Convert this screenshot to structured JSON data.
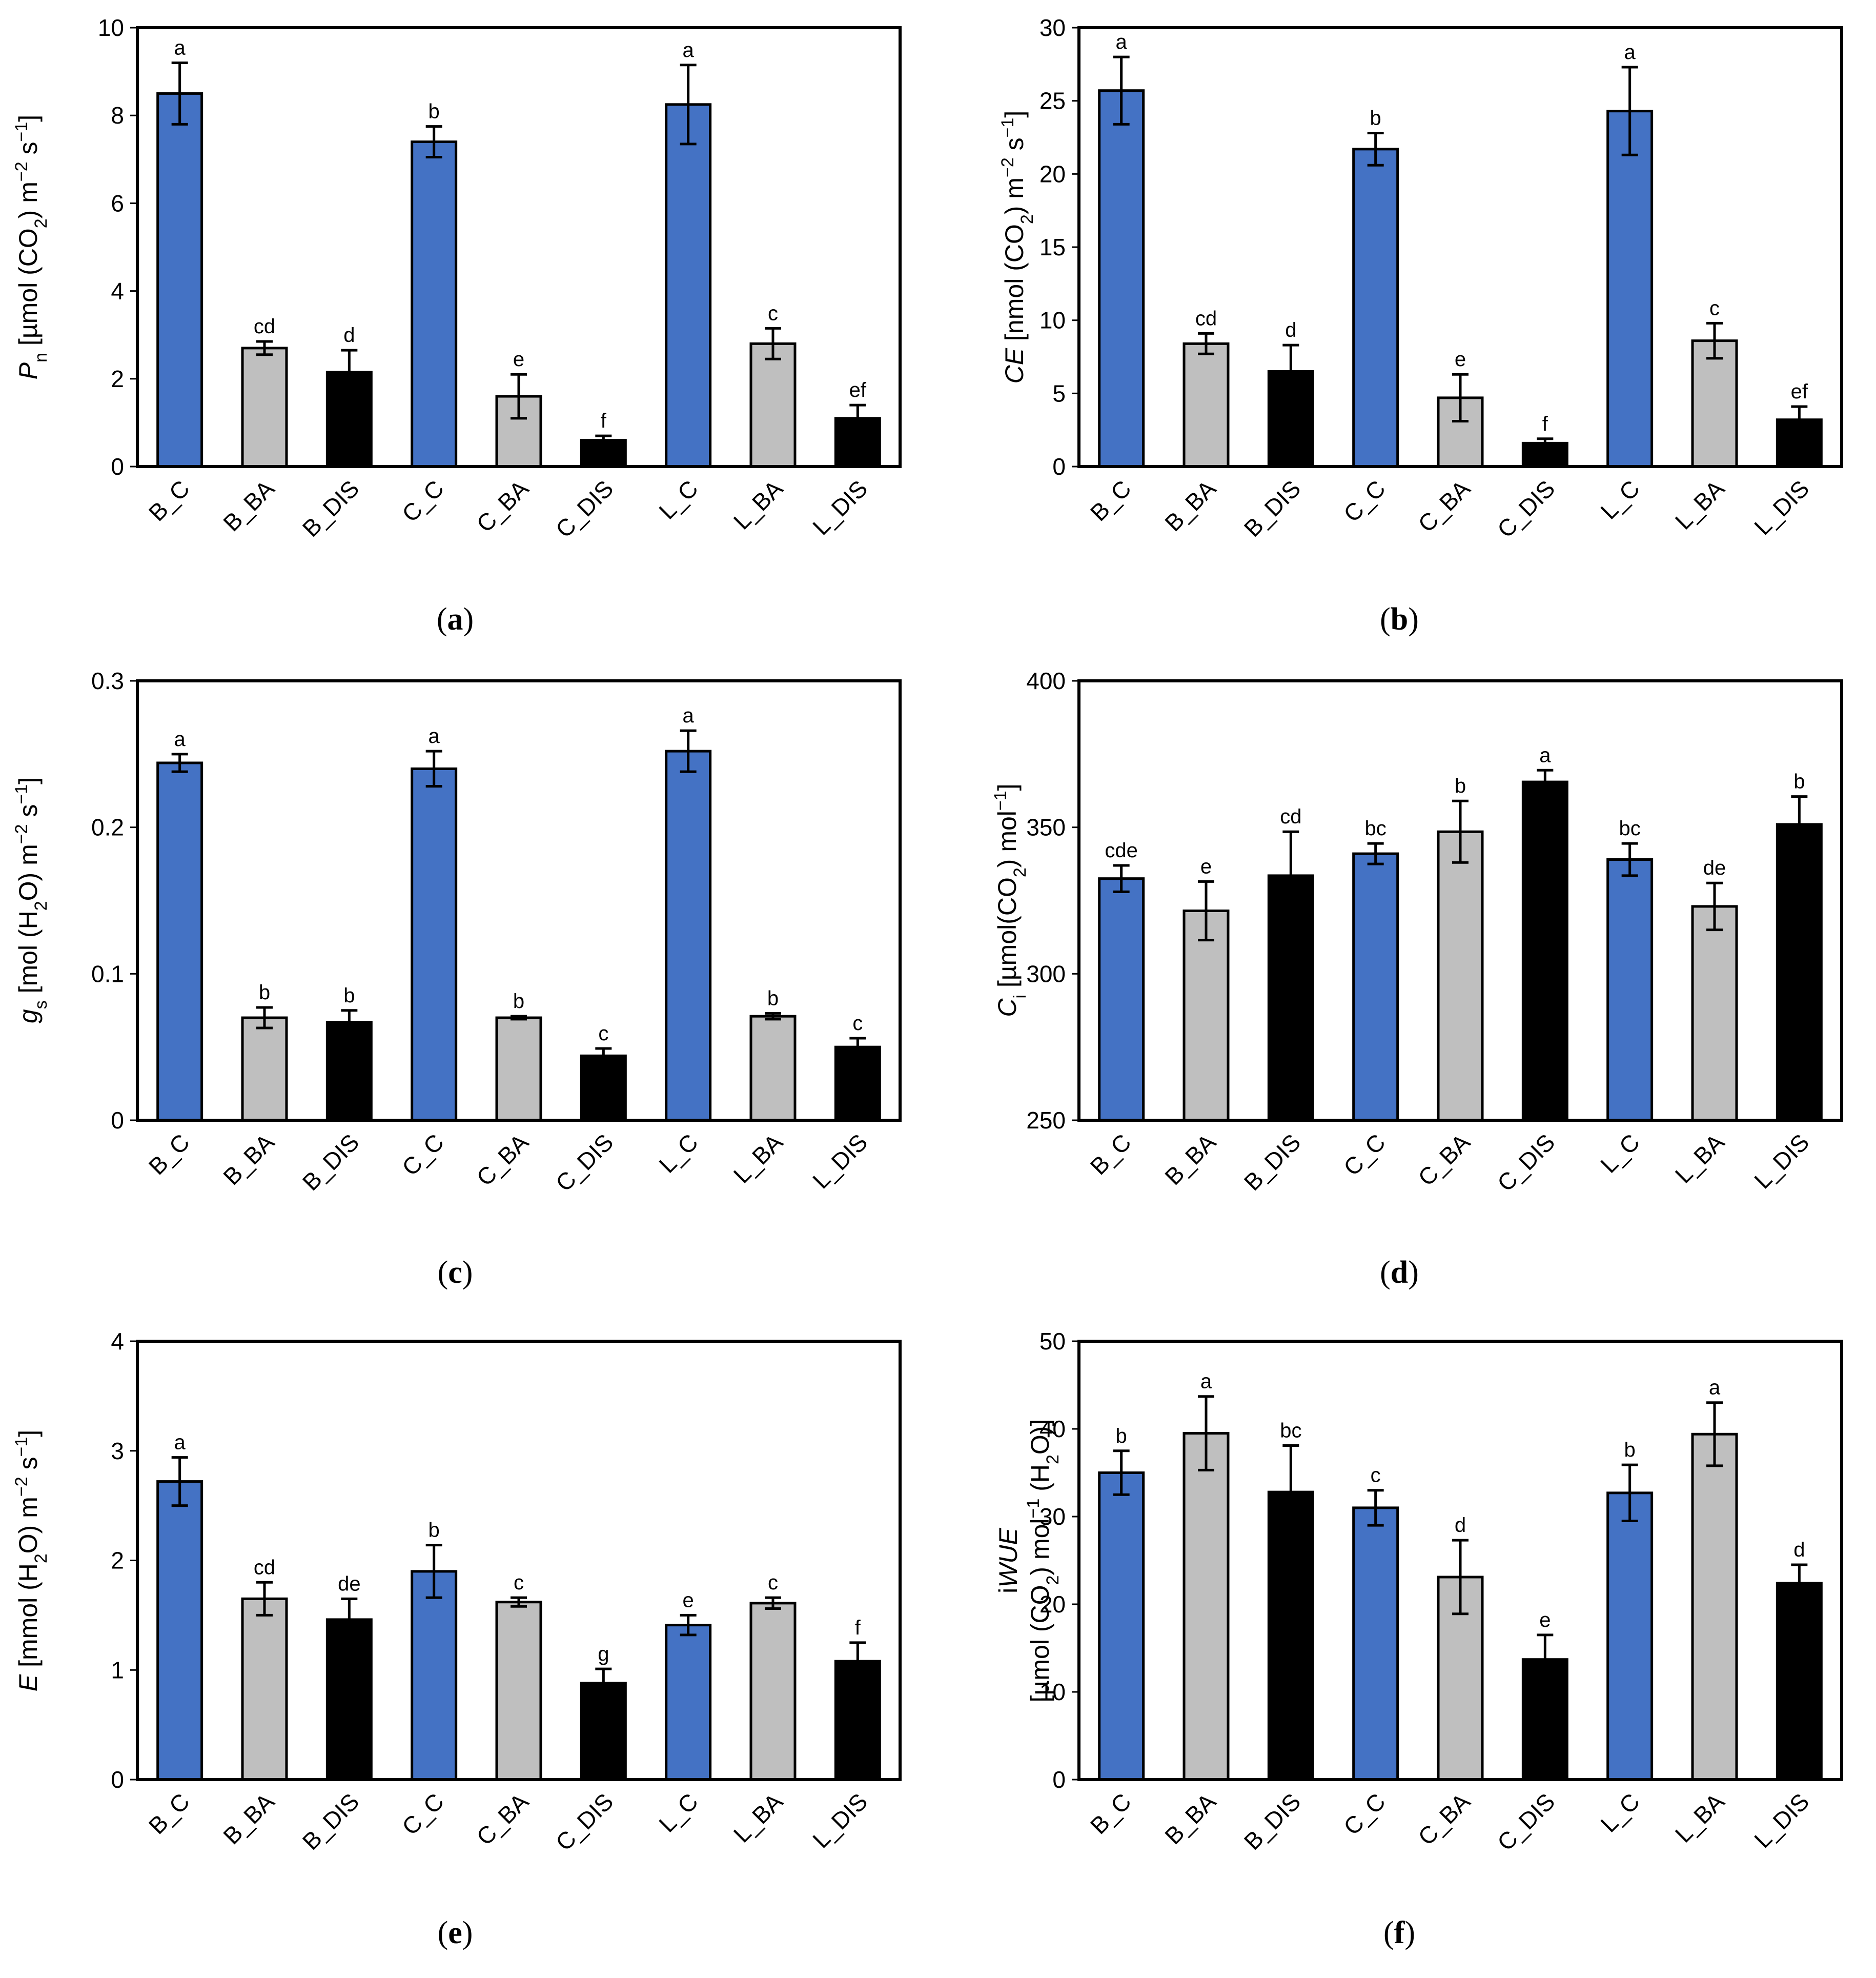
{
  "categories": [
    "B_C",
    "B_BA",
    "B_DIS",
    "C_C",
    "C_BA",
    "C_DIS",
    "L_C",
    "L_BA",
    "L_DIS"
  ],
  "colors": {
    "control": "#4472C4",
    "ba": "#BFBFBF",
    "dis": "#000000",
    "axis": "#000000"
  },
  "chart_data": [
    {
      "type": "bar",
      "panel": "a",
      "caption": {
        "open": "(",
        "letter": "a",
        "close": ")"
      },
      "ylabel_parts": [
        {
          "text": "P",
          "style": "italic"
        },
        {
          "text": "n",
          "style": "sub"
        },
        {
          "text": " [µmol (CO",
          "style": "normal"
        },
        {
          "text": "2",
          "style": "sub"
        },
        {
          "text": ") m",
          "style": "normal"
        },
        {
          "text": "−2",
          "style": "sup"
        },
        {
          "text": " s",
          "style": "normal"
        },
        {
          "text": "−1",
          "style": "sup"
        },
        {
          "text": "]",
          "style": "normal"
        }
      ],
      "ylim": [
        0,
        10
      ],
      "yticks": [
        "0",
        "2",
        "4",
        "6",
        "8",
        "10"
      ],
      "values": [
        8.5,
        2.7,
        2.15,
        7.4,
        1.6,
        0.6,
        8.25,
        2.8,
        1.1
      ],
      "errors": [
        0.7,
        0.15,
        0.5,
        0.35,
        0.5,
        0.1,
        0.9,
        0.35,
        0.3
      ],
      "letters": [
        "a",
        "cd",
        "d",
        "b",
        "e",
        "f",
        "a",
        "c",
        "ef"
      ]
    },
    {
      "type": "bar",
      "panel": "b",
      "caption": {
        "open": "(",
        "letter": "b",
        "close": ")"
      },
      "ylabel_parts": [
        {
          "text": "CE",
          "style": "italic"
        },
        {
          "text": " [nmol (CO",
          "style": "normal"
        },
        {
          "text": "2",
          "style": "sub"
        },
        {
          "text": ") m",
          "style": "normal"
        },
        {
          "text": "−2",
          "style": "sup"
        },
        {
          "text": " s",
          "style": "normal"
        },
        {
          "text": "−1",
          "style": "sup"
        },
        {
          "text": "]",
          "style": "normal"
        }
      ],
      "ylim": [
        0,
        30
      ],
      "yticks": [
        "0",
        "5",
        "10",
        "15",
        "20",
        "25",
        "30"
      ],
      "values": [
        25.7,
        8.4,
        6.5,
        21.7,
        4.7,
        1.6,
        24.3,
        8.6,
        3.2
      ],
      "errors": [
        2.3,
        0.7,
        1.8,
        1.1,
        1.6,
        0.3,
        3.0,
        1.2,
        0.9
      ],
      "letters": [
        "a",
        "cd",
        "d",
        "b",
        "e",
        "f",
        "a",
        "c",
        "ef"
      ]
    },
    {
      "type": "bar",
      "panel": "c",
      "caption": {
        "open": "(",
        "letter": "c",
        "close": ")"
      },
      "ylabel_parts": [
        {
          "text": "g",
          "style": "italic"
        },
        {
          "text": "s",
          "style": "sub"
        },
        {
          "text": " [mol (H",
          "style": "normal"
        },
        {
          "text": "2",
          "style": "sub"
        },
        {
          "text": "O) m",
          "style": "normal"
        },
        {
          "text": "−2",
          "style": "sup"
        },
        {
          "text": " s",
          "style": "normal"
        },
        {
          "text": "−1",
          "style": "sup"
        },
        {
          "text": "]",
          "style": "normal"
        }
      ],
      "ylim": [
        0,
        0.3
      ],
      "yticks": [
        "0",
        "0.1",
        "0.2",
        "0.3"
      ],
      "values": [
        0.244,
        0.07,
        0.067,
        0.24,
        0.07,
        0.044,
        0.252,
        0.071,
        0.05
      ],
      "errors": [
        0.006,
        0.007,
        0.008,
        0.012,
        0.001,
        0.005,
        0.014,
        0.002,
        0.006
      ],
      "letters": [
        "a",
        "b",
        "b",
        "a",
        "b",
        "c",
        "a",
        "b",
        "c"
      ]
    },
    {
      "type": "bar",
      "panel": "d",
      "caption": {
        "open": "(",
        "letter": "d",
        "close": ")"
      },
      "ylabel_parts": [
        {
          "text": "C",
          "style": "italic"
        },
        {
          "text": "i",
          "style": "sub"
        },
        {
          "text": " [µmol(CO",
          "style": "normal"
        },
        {
          "text": "2",
          "style": "sub"
        },
        {
          "text": ") mol",
          "style": "normal"
        },
        {
          "text": "−1",
          "style": "sup"
        },
        {
          "text": "]",
          "style": "normal"
        }
      ],
      "ylim": [
        250,
        400
      ],
      "yticks": [
        "250",
        "300",
        "350",
        "400"
      ],
      "values": [
        332.5,
        321.5,
        333.5,
        341,
        348.5,
        365.5,
        339,
        323,
        351
      ],
      "errors": [
        4.5,
        10,
        15,
        3.5,
        10.5,
        4,
        5.5,
        8,
        9.5
      ],
      "letters": [
        "cde",
        "e",
        "cd",
        "bc",
        "b",
        "a",
        "bc",
        "de",
        "b"
      ]
    },
    {
      "type": "bar",
      "panel": "e",
      "caption": {
        "open": "(",
        "letter": "e",
        "close": ")"
      },
      "ylabel_parts": [
        {
          "text": "E",
          "style": "italic"
        },
        {
          "text": " [mmol (H",
          "style": "normal"
        },
        {
          "text": "2",
          "style": "sub"
        },
        {
          "text": "O) m",
          "style": "normal"
        },
        {
          "text": "−2",
          "style": "sup"
        },
        {
          "text": " s",
          "style": "normal"
        },
        {
          "text": "−1",
          "style": "sup"
        },
        {
          "text": "]",
          "style": "normal"
        }
      ],
      "ylim": [
        0,
        4
      ],
      "yticks": [
        "0",
        "1",
        "2",
        "3",
        "4"
      ],
      "values": [
        2.72,
        1.65,
        1.46,
        1.9,
        1.62,
        0.88,
        1.41,
        1.61,
        1.08
      ],
      "errors": [
        0.22,
        0.15,
        0.19,
        0.24,
        0.04,
        0.13,
        0.09,
        0.05,
        0.17
      ],
      "letters": [
        "a",
        "cd",
        "de",
        "b",
        "c",
        "g",
        "e",
        "c",
        "f"
      ]
    },
    {
      "type": "bar",
      "panel": "f",
      "caption": {
        "open": "(",
        "letter": "f",
        "close": ")"
      },
      "ylabel_line1_parts": [
        {
          "text": "i",
          "style": "normal"
        },
        {
          "text": "WUE",
          "style": "italic"
        }
      ],
      "ylabel_parts": [
        {
          "text": "[µmol (CO",
          "style": "normal"
        },
        {
          "text": "2",
          "style": "sub"
        },
        {
          "text": ") mol",
          "style": "normal"
        },
        {
          "text": "−1",
          "style": "sup"
        },
        {
          "text": " (H",
          "style": "normal"
        },
        {
          "text": "2",
          "style": "sub"
        },
        {
          "text": "O)]",
          "style": "normal"
        }
      ],
      "ylim": [
        0,
        50
      ],
      "yticks": [
        "0",
        "10",
        "20",
        "30",
        "40",
        "50"
      ],
      "values": [
        35,
        39.5,
        32.8,
        31,
        23.1,
        13.7,
        32.7,
        39.4,
        22.4
      ],
      "errors": [
        2.5,
        4.2,
        5.3,
        2.0,
        4.2,
        2.8,
        3.2,
        3.6,
        2.1
      ],
      "letters": [
        "b",
        "a",
        "bc",
        "c",
        "d",
        "e",
        "b",
        "a",
        "d"
      ]
    }
  ]
}
